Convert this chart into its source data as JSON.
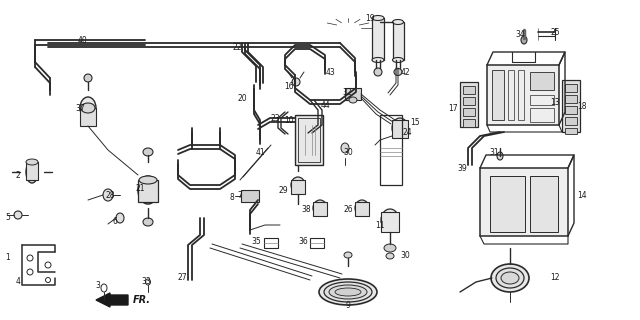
{
  "fig_width": 6.4,
  "fig_height": 3.2,
  "dpi": 100,
  "bg": "#ffffff",
  "lc": "#2a2a2a",
  "lc_light": "#555555"
}
